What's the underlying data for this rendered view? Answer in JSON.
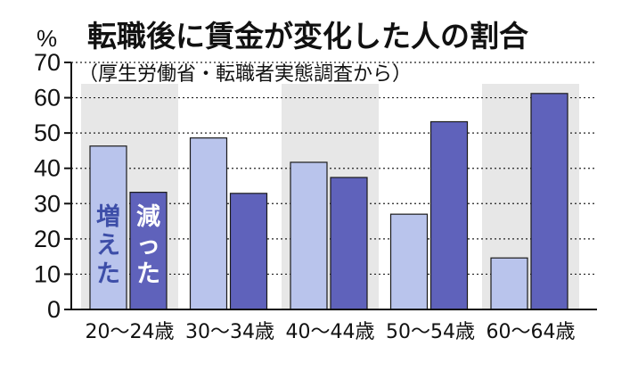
{
  "chart_data": {
    "type": "bar",
    "title": "転職後に賃金が変化した人の割合",
    "subtitle": "（厚生労働省・転職者実態調査から）",
    "ylabel": "%",
    "ylim": [
      0,
      70
    ],
    "yticks": [
      0,
      10,
      20,
      30,
      40,
      50,
      60,
      70
    ],
    "grid": true,
    "categories": [
      "20～24歳",
      "30～34歳",
      "40～44歳",
      "50～54歳",
      "60～64歳"
    ],
    "series": [
      {
        "name": "増えた",
        "values": [
          46.3,
          48.6,
          41.7,
          27.0,
          14.6
        ],
        "color": "#b9c4ec"
      },
      {
        "name": "減った",
        "values": [
          33.2,
          32.9,
          37.4,
          53.2,
          61.2
        ],
        "color": "#5f62bb"
      }
    ],
    "band_color": "#e7e7e7"
  }
}
